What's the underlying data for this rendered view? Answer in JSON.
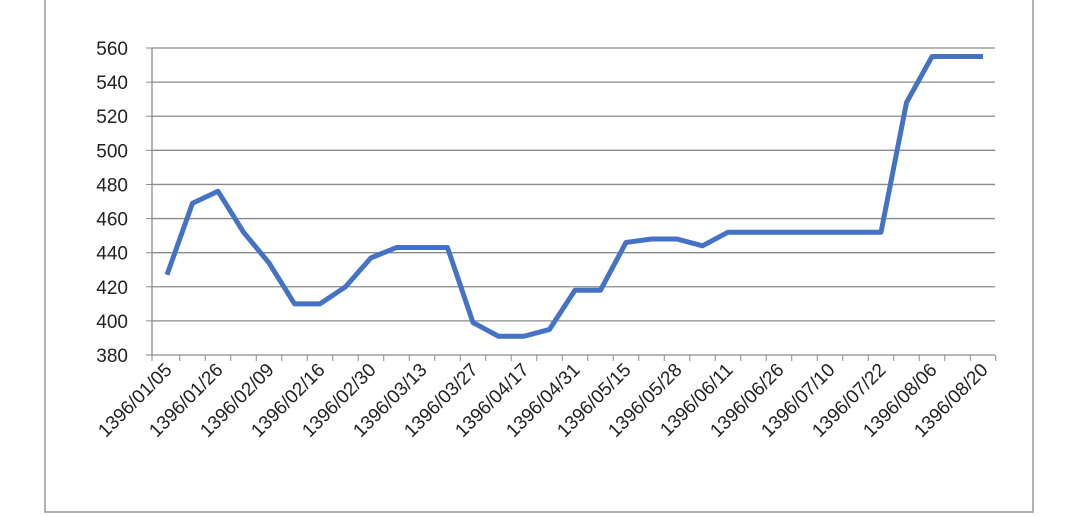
{
  "chart_data": {
    "type": "line",
    "categories": [
      "1396/01/05",
      null,
      "1396/01/26",
      null,
      "1396/02/09",
      null,
      "1396/02/16",
      null,
      "1396/02/30",
      null,
      "1396/03/13",
      null,
      "1396/03/27",
      null,
      "1396/04/17",
      null,
      "1396/04/31",
      null,
      "1396/05/15",
      null,
      "1396/05/28",
      null,
      "1396/06/11",
      null,
      "1396/06/26",
      null,
      "1396/07/10",
      null,
      "1396/07/22",
      null,
      "1396/08/06",
      null,
      "1396/08/20"
    ],
    "values": [
      427,
      469,
      476,
      452,
      434,
      410,
      410,
      420,
      437,
      443,
      443,
      443,
      399,
      391,
      391,
      395,
      418,
      418,
      446,
      448,
      448,
      444,
      452,
      452,
      452,
      452,
      452,
      452,
      452,
      528,
      555,
      555,
      555
    ],
    "color": "#4472c4",
    "ylim": [
      380,
      560
    ],
    "yticks": [
      380,
      400,
      420,
      440,
      460,
      480,
      500,
      520,
      540,
      560
    ],
    "grid": true
  }
}
